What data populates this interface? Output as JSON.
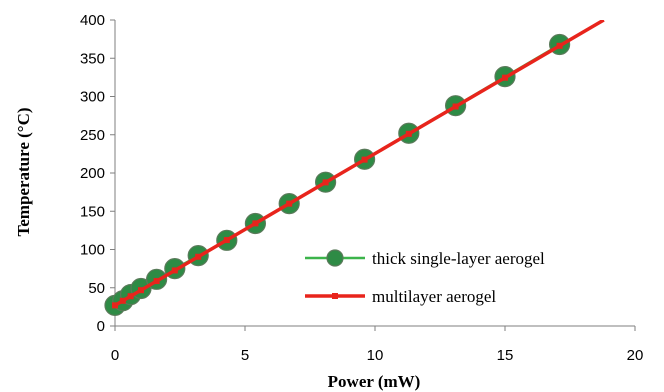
{
  "chart_data": {
    "type": "line",
    "title": "",
    "xlabel": "Power (mW)",
    "ylabel": "Temperature (°C)",
    "xlim": [
      0,
      20
    ],
    "ylim": [
      0,
      400
    ],
    "xticks": [
      0,
      5,
      10,
      15,
      20
    ],
    "yticks": [
      0,
      50,
      100,
      150,
      200,
      250,
      300,
      350,
      400
    ],
    "grid": false,
    "legend_position": "bottom-right",
    "series": [
      {
        "name": "thick single-layer aerogel",
        "color": "#2e8b45",
        "line_color": "#3cb44b",
        "marker": "circle",
        "x": [
          0.0,
          0.3,
          0.6,
          1.0,
          1.6,
          2.3,
          3.2,
          4.3,
          5.4,
          6.7,
          8.1,
          9.6,
          11.3,
          13.1,
          15.0,
          17.1
        ],
        "y": [
          27,
          33,
          41,
          49,
          61,
          75,
          92,
          112,
          134,
          160,
          188,
          218,
          252,
          288,
          326,
          368
        ]
      },
      {
        "name": "multilayer aerogel",
        "color": "#e8241c",
        "marker": "square",
        "x": [
          0.0,
          18.8
        ],
        "y": [
          27,
          400
        ]
      }
    ]
  }
}
